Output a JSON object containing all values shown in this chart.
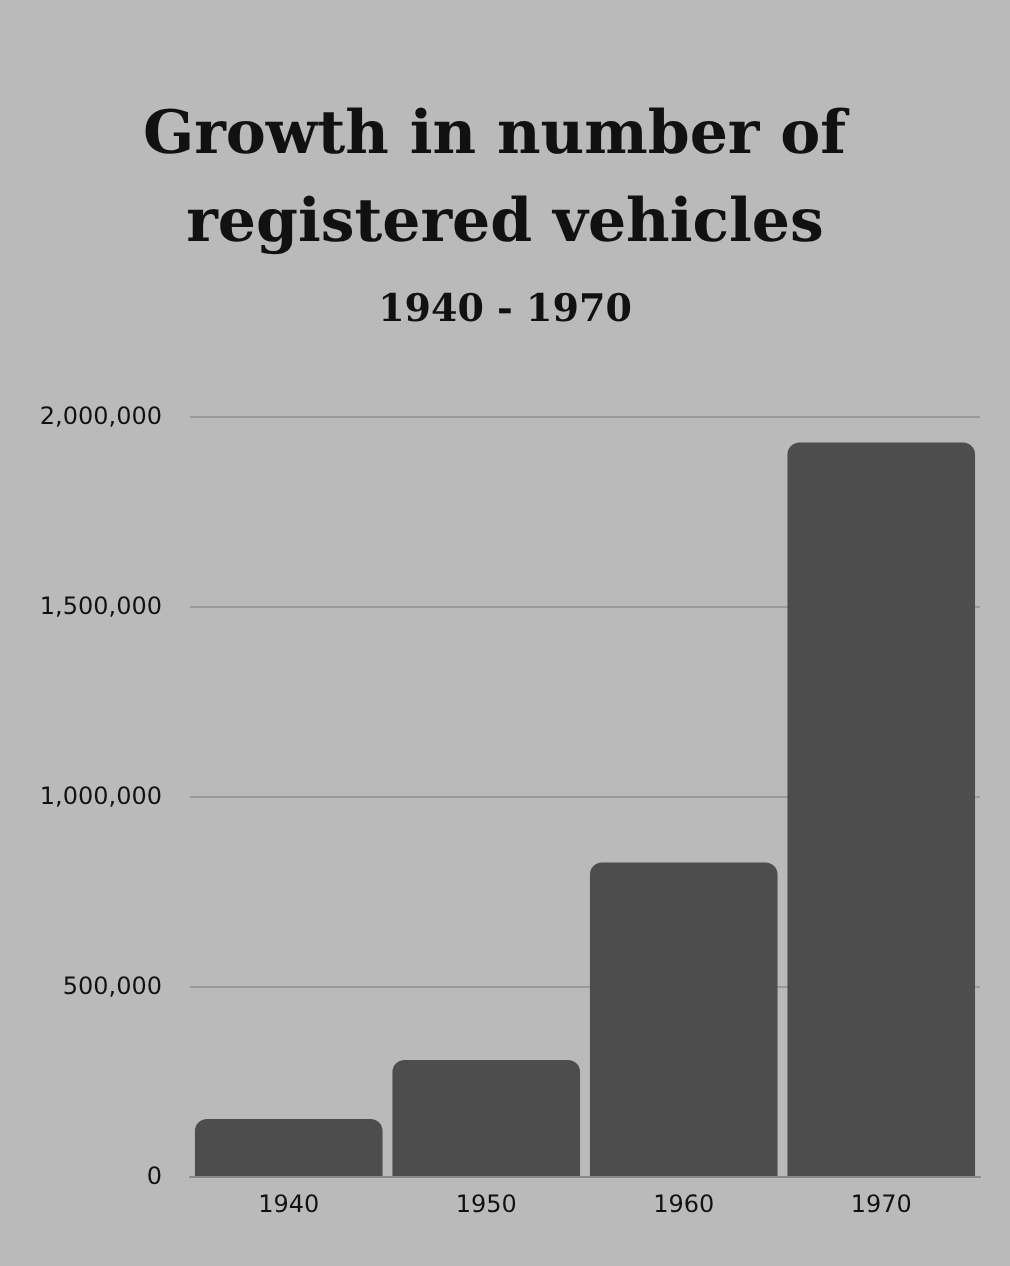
{
  "chart_data": {
    "type": "bar",
    "title": "Growth in number of registered vehicles",
    "subtitle": "1940 - 1970",
    "categories": [
      "1940",
      "1950",
      "1960",
      "1970"
    ],
    "values": [
      150000,
      305000,
      825000,
      1930000
    ],
    "color": "#4d4d4d",
    "ylim": [
      0,
      2000000
    ],
    "yticks": [
      0,
      {
        "value": 500000,
        "label": "500,000"
      },
      {
        "value": 1000000,
        "label": "1,000,000"
      },
      {
        "value": 1500000,
        "label": "1,500,000"
      },
      {
        "value": 2000000,
        "label": "2,000,000"
      }
    ],
    "grid": "y"
  }
}
